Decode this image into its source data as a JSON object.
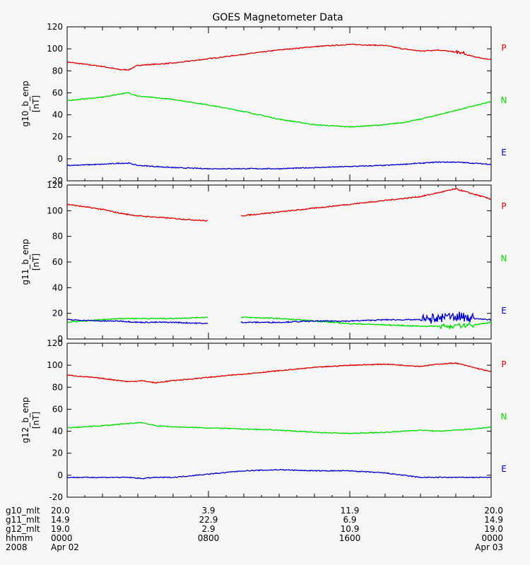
{
  "title": "GOES Magnetometer Data",
  "colors": {
    "P": "#dd0000",
    "N": "#00dd00",
    "E": "#0000cc"
  },
  "component_labels": [
    "P",
    "N",
    "E"
  ],
  "chart_data": [
    {
      "type": "line",
      "ylabel": "g10_b_enp",
      "yunit": "[nT]",
      "ylim": [
        -20,
        120
      ],
      "yticks": [
        -20,
        0,
        20,
        40,
        60,
        80,
        100,
        120
      ],
      "x_hours": [
        0,
        2,
        3,
        3.5,
        4,
        6,
        8,
        10,
        12,
        14,
        16,
        18,
        19,
        20,
        21,
        22,
        23,
        24
      ],
      "series": [
        {
          "name": "P",
          "values": [
            88,
            84,
            81,
            81,
            85,
            87,
            91,
            95,
            99,
            102,
            104,
            103,
            100,
            98,
            99,
            97,
            93,
            90
          ]
        },
        {
          "name": "N",
          "values": [
            53,
            56,
            59,
            60,
            57,
            54,
            49,
            43,
            36,
            31,
            29,
            31,
            33,
            36,
            40,
            44,
            48,
            52
          ]
        },
        {
          "name": "E",
          "values": [
            -6,
            -5,
            -4,
            -4,
            -6,
            -8,
            -9,
            -9,
            -9,
            -8,
            -7,
            -6,
            -5,
            -4,
            -3,
            -3,
            -4,
            -5
          ]
        }
      ]
    },
    {
      "type": "line",
      "ylabel": "g11_b_enp",
      "yunit": "[nT]",
      "ylim": [
        0,
        120
      ],
      "yticks": [
        0,
        20,
        40,
        60,
        80,
        100,
        120
      ],
      "gap_hours": [
        8,
        9.8
      ],
      "x_hours": [
        0,
        2,
        3,
        4,
        6,
        8,
        9.8,
        12,
        14,
        16,
        18,
        20,
        21,
        22,
        23,
        24
      ],
      "series": [
        {
          "name": "P",
          "values": [
            105,
            101,
            98,
            96,
            94,
            92,
            96,
            99,
            102,
            105,
            108,
            111,
            114,
            117,
            113,
            109
          ]
        },
        {
          "name": "N",
          "values": [
            13,
            15,
            16,
            16,
            16,
            17,
            17,
            16,
            14,
            12,
            11,
            10,
            10,
            10,
            11,
            13
          ]
        },
        {
          "name": "E",
          "values": [
            15,
            14,
            14,
            13,
            13,
            12,
            13,
            13,
            14,
            14,
            15,
            15,
            16,
            18,
            16,
            15
          ]
        }
      ]
    },
    {
      "type": "line",
      "ylabel": "g12_b_enp",
      "yunit": "[nT]",
      "ylim": [
        -20,
        120
      ],
      "yticks": [
        -20,
        0,
        20,
        40,
        60,
        80,
        100,
        120
      ],
      "x_hours": [
        0,
        2,
        3.5,
        4.2,
        5,
        6,
        8,
        10,
        12,
        14,
        16,
        18,
        19,
        20,
        21,
        22,
        23,
        24
      ],
      "series": [
        {
          "name": "P",
          "values": [
            91,
            88,
            85,
            86,
            84,
            86,
            89,
            92,
            95,
            98,
            100,
            101,
            100,
            99,
            101,
            102,
            98,
            94
          ]
        },
        {
          "name": "N",
          "values": [
            43,
            45,
            47,
            48,
            45,
            44,
            43,
            42,
            41,
            39,
            38,
            39,
            40,
            41,
            40,
            41,
            42,
            44
          ]
        },
        {
          "name": "E",
          "values": [
            -2,
            -2,
            -2,
            -3,
            -2,
            -2,
            1,
            4,
            5,
            4,
            4,
            2,
            0,
            -2,
            -2,
            -2,
            -2,
            -2
          ]
        }
      ]
    }
  ],
  "footer": {
    "rows": [
      {
        "label": "g10_mlt",
        "values": [
          "20.0",
          "3.9",
          "11.9",
          "20.0"
        ]
      },
      {
        "label": "g11_mlt",
        "values": [
          "14.9",
          "22.9",
          "6.9",
          "14.9"
        ]
      },
      {
        "label": "g12_mlt",
        "values": [
          "19.0",
          "2.9",
          "10.9",
          "19.0"
        ]
      },
      {
        "label": "hhmm",
        "values": [
          "0000",
          "0800",
          "1600",
          "0000"
        ]
      },
      {
        "label": "2008",
        "values": [
          "Apr 02",
          "",
          "",
          "Apr 03"
        ]
      }
    ]
  }
}
